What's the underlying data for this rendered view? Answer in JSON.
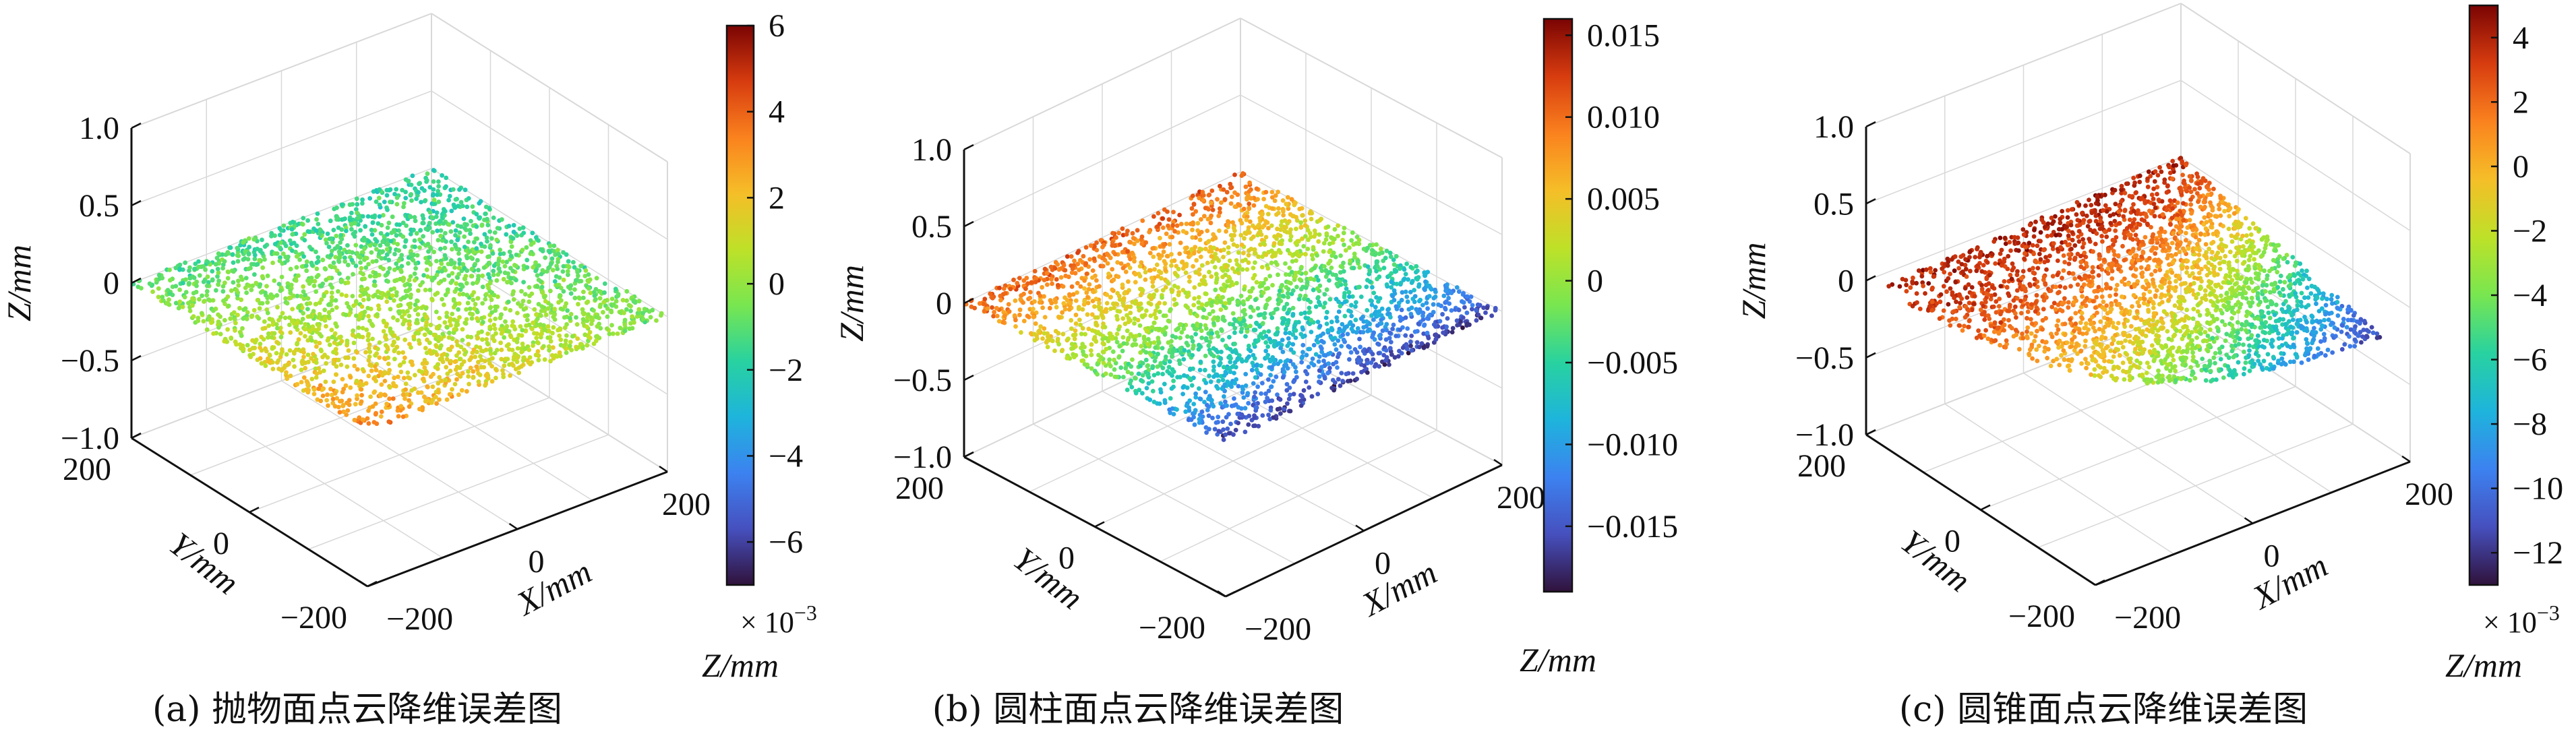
{
  "chart_data": [
    {
      "type": "scatter",
      "surface": "paraboloid",
      "caption": "(a) 抛物面点云降维误差图",
      "xlabel": "X/mm",
      "ylabel": "Y/mm",
      "zlabel": "Z/mm",
      "x_ticks": [
        "−200",
        "0",
        "200"
      ],
      "y_ticks": [
        "−200",
        "0",
        "200"
      ],
      "z_ticks": [
        "−1.0",
        "−0.5",
        "0",
        "0.5",
        "1.0"
      ],
      "xlim": [
        -200,
        200
      ],
      "ylim": [
        -200,
        200
      ],
      "zlim": [
        -1,
        1
      ],
      "colorbar": {
        "ticks": [
          "6",
          "4",
          "2",
          "0",
          "−2",
          "−4",
          "−6"
        ],
        "tick_values": [
          6,
          4,
          2,
          0,
          -2,
          -4,
          -6
        ],
        "range": [
          -7,
          6
        ],
        "multiplier": "× 10",
        "multiplier_exp": "−3",
        "label": "Z/mm",
        "colormap": "turbo"
      },
      "grid": true
    },
    {
      "type": "scatter",
      "surface": "cylinder",
      "caption": "(b) 圆柱面点云降维误差图",
      "xlabel": "X/mm",
      "ylabel": "Y/mm",
      "zlabel": "Z/mm",
      "x_ticks": [
        "−200",
        "0",
        "200"
      ],
      "y_ticks": [
        "−200",
        "0",
        "200"
      ],
      "z_ticks": [
        "−1.0",
        "−0.5",
        "0",
        "0.5",
        "1.0"
      ],
      "xlim": [
        -200,
        200
      ],
      "ylim": [
        -200,
        200
      ],
      "zlim": [
        -1,
        1
      ],
      "colorbar": {
        "ticks": [
          "0.015",
          "0.010",
          "0.005",
          "0",
          "−0.005",
          "−0.010",
          "−0.015"
        ],
        "tick_values": [
          0.015,
          0.01,
          0.005,
          0,
          -0.005,
          -0.01,
          -0.015
        ],
        "range": [
          -0.019,
          0.016
        ],
        "multiplier": "",
        "multiplier_exp": "",
        "label": "Z/mm",
        "colormap": "turbo"
      },
      "grid": true
    },
    {
      "type": "scatter",
      "surface": "cone",
      "caption": "(c) 圆锥面点云降维误差图",
      "xlabel": "X/mm",
      "ylabel": "Y/mm",
      "zlabel": "Z/mm",
      "x_ticks": [
        "−200",
        "0",
        "200"
      ],
      "y_ticks": [
        "−200",
        "0",
        "200"
      ],
      "z_ticks": [
        "−1.0",
        "−0.5",
        "0",
        "0.5",
        "1.0"
      ],
      "xlim": [
        -200,
        200
      ],
      "ylim": [
        -200,
        200
      ],
      "zlim": [
        -1,
        1
      ],
      "colorbar": {
        "ticks": [
          "4",
          "2",
          "0",
          "−2",
          "−4",
          "−6",
          "−8",
          "−10",
          "−12"
        ],
        "tick_values": [
          4,
          2,
          0,
          -2,
          -4,
          -6,
          -8,
          -10,
          -12
        ],
        "range": [
          -13,
          5
        ],
        "multiplier": "× 10",
        "multiplier_exp": "−3",
        "label": "Z/mm",
        "colormap": "turbo"
      },
      "grid": true
    }
  ]
}
